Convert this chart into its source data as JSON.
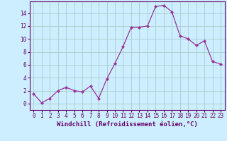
{
  "x": [
    0,
    1,
    2,
    3,
    4,
    5,
    6,
    7,
    8,
    9,
    10,
    11,
    12,
    13,
    14,
    15,
    16,
    17,
    18,
    19,
    20,
    21,
    22,
    23
  ],
  "y": [
    1.5,
    0.1,
    0.8,
    2.0,
    2.5,
    2.0,
    1.8,
    2.7,
    0.8,
    3.8,
    6.2,
    8.8,
    11.8,
    11.8,
    12.0,
    15.0,
    15.2,
    14.2,
    10.5,
    10.0,
    9.0,
    9.7,
    6.5,
    6.1
  ],
  "line_color": "#993399",
  "marker": "D",
  "marker_size": 2.0,
  "bg_color": "#cceeff",
  "grid_color": "#aacccc",
  "xlabel": "Windchill (Refroidissement éolien,°C)",
  "ylabel": "",
  "xlim": [
    -0.5,
    23.5
  ],
  "ylim": [
    -1.0,
    15.8
  ],
  "yticks": [
    0,
    2,
    4,
    6,
    8,
    10,
    12,
    14
  ],
  "xticks": [
    0,
    1,
    2,
    3,
    4,
    5,
    6,
    7,
    8,
    9,
    10,
    11,
    12,
    13,
    14,
    15,
    16,
    17,
    18,
    19,
    20,
    21,
    22,
    23
  ],
  "tick_label_fontsize": 5.5,
  "xlabel_fontsize": 6.5,
  "axis_color": "#660066",
  "spine_color": "#660066"
}
